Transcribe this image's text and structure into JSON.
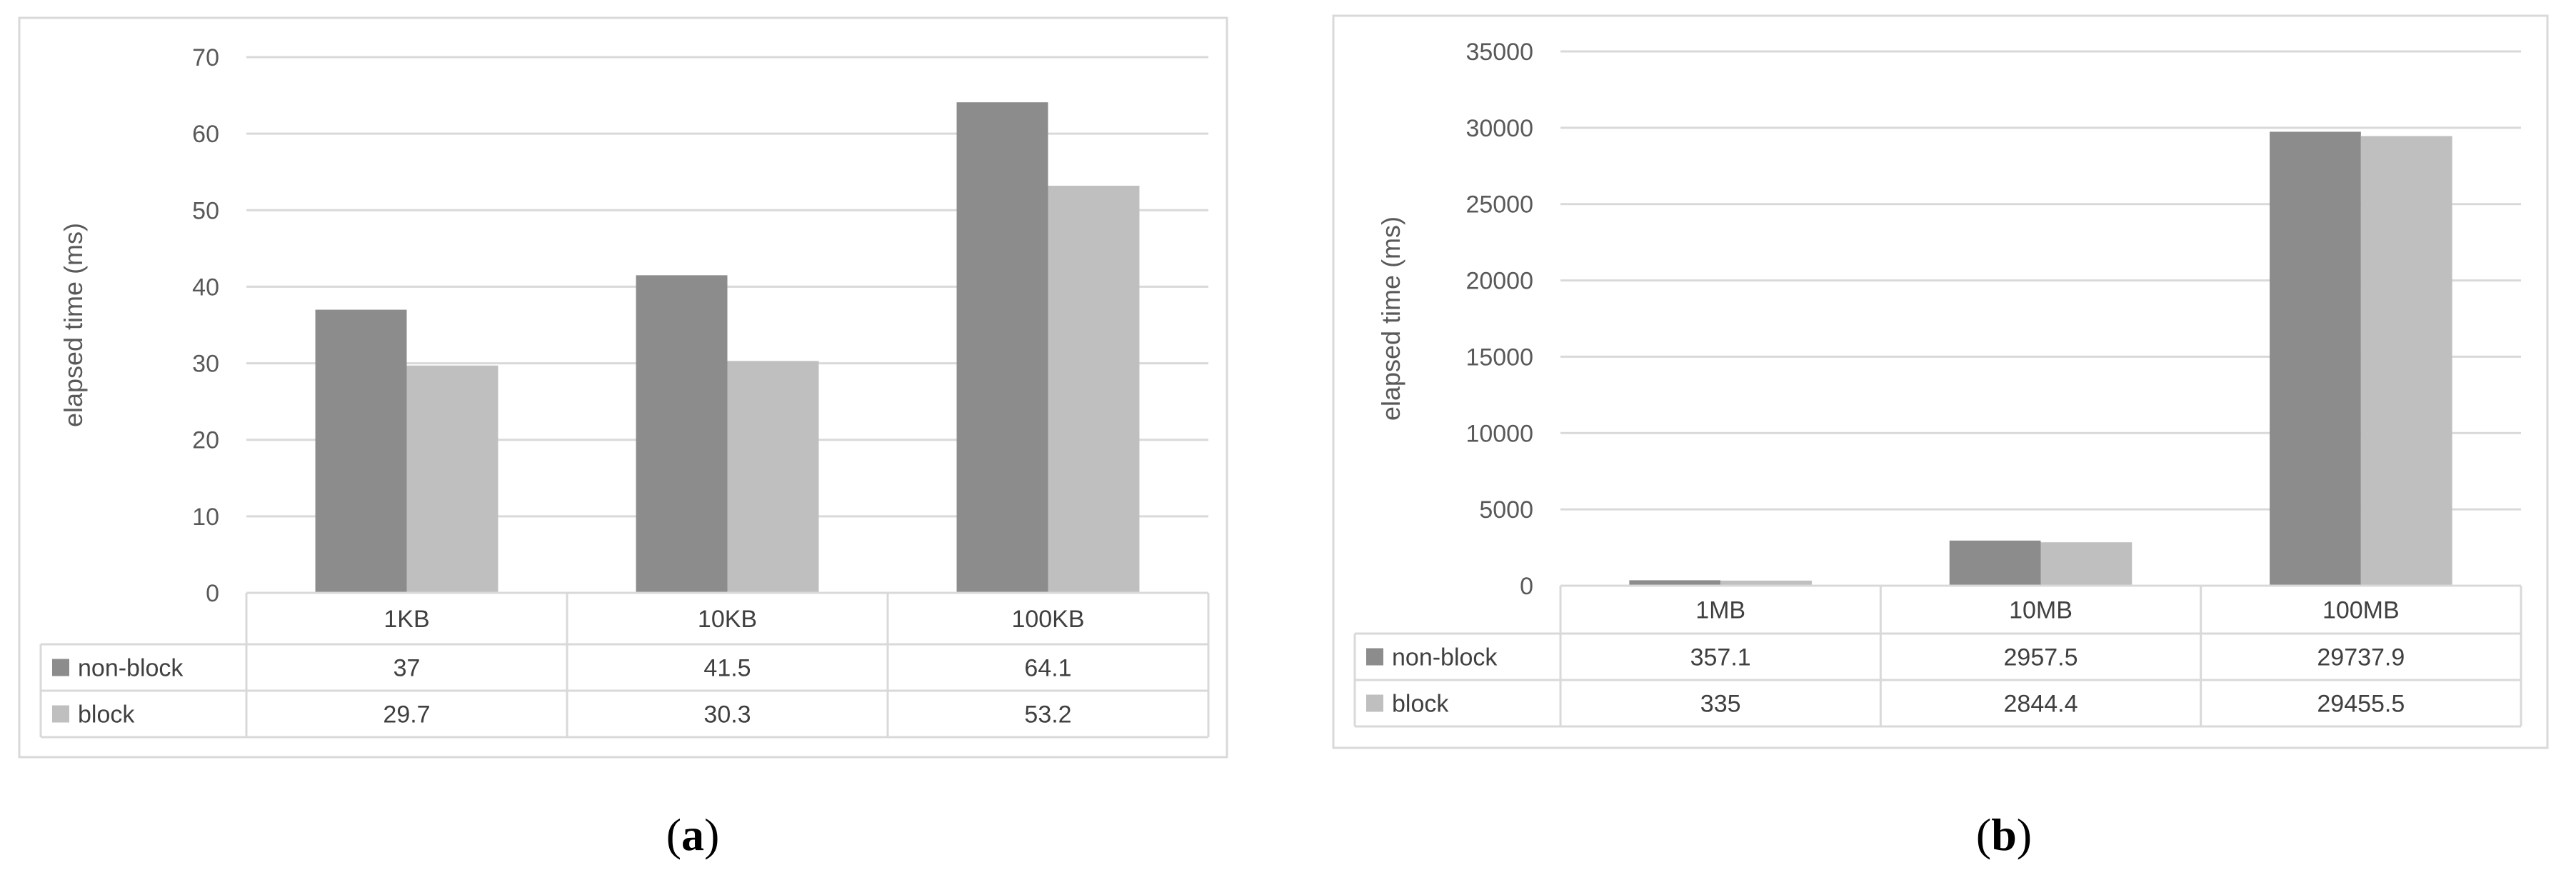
{
  "chart_data": [
    {
      "type": "bar",
      "panel_label": "a",
      "ylabel": "elapsed time (ms)",
      "ylim": [
        0,
        70
      ],
      "yticks": [
        0,
        10,
        20,
        30,
        40,
        50,
        60,
        70
      ],
      "grid": true,
      "categories": [
        "1KB",
        "10KB",
        "100KB"
      ],
      "series": [
        {
          "name": "non-block",
          "color": "#8c8c8c",
          "values": [
            37,
            41.5,
            64.1
          ],
          "labels": [
            "37",
            "41.5",
            "64.1"
          ]
        },
        {
          "name": "block",
          "color": "#bfbfbf",
          "values": [
            29.7,
            30.3,
            53.2
          ],
          "labels": [
            "29.7",
            "30.3",
            "53.2"
          ]
        }
      ]
    },
    {
      "type": "bar",
      "panel_label": "b",
      "ylabel": "elapsed time (ms)",
      "ylim": [
        0,
        35000
      ],
      "yticks": [
        0,
        5000,
        10000,
        15000,
        20000,
        25000,
        30000,
        35000
      ],
      "grid": true,
      "categories": [
        "1MB",
        "10MB",
        "100MB"
      ],
      "series": [
        {
          "name": "non-block",
          "color": "#8c8c8c",
          "values": [
            357.1,
            2957.5,
            29737.9
          ],
          "labels": [
            "357.1",
            "2957.5",
            "29737.9"
          ]
        },
        {
          "name": "block",
          "color": "#bfbfbf",
          "values": [
            335,
            2844.4,
            29455.5
          ],
          "labels": [
            "335",
            "2844.4",
            "29455.5"
          ]
        }
      ]
    }
  ]
}
